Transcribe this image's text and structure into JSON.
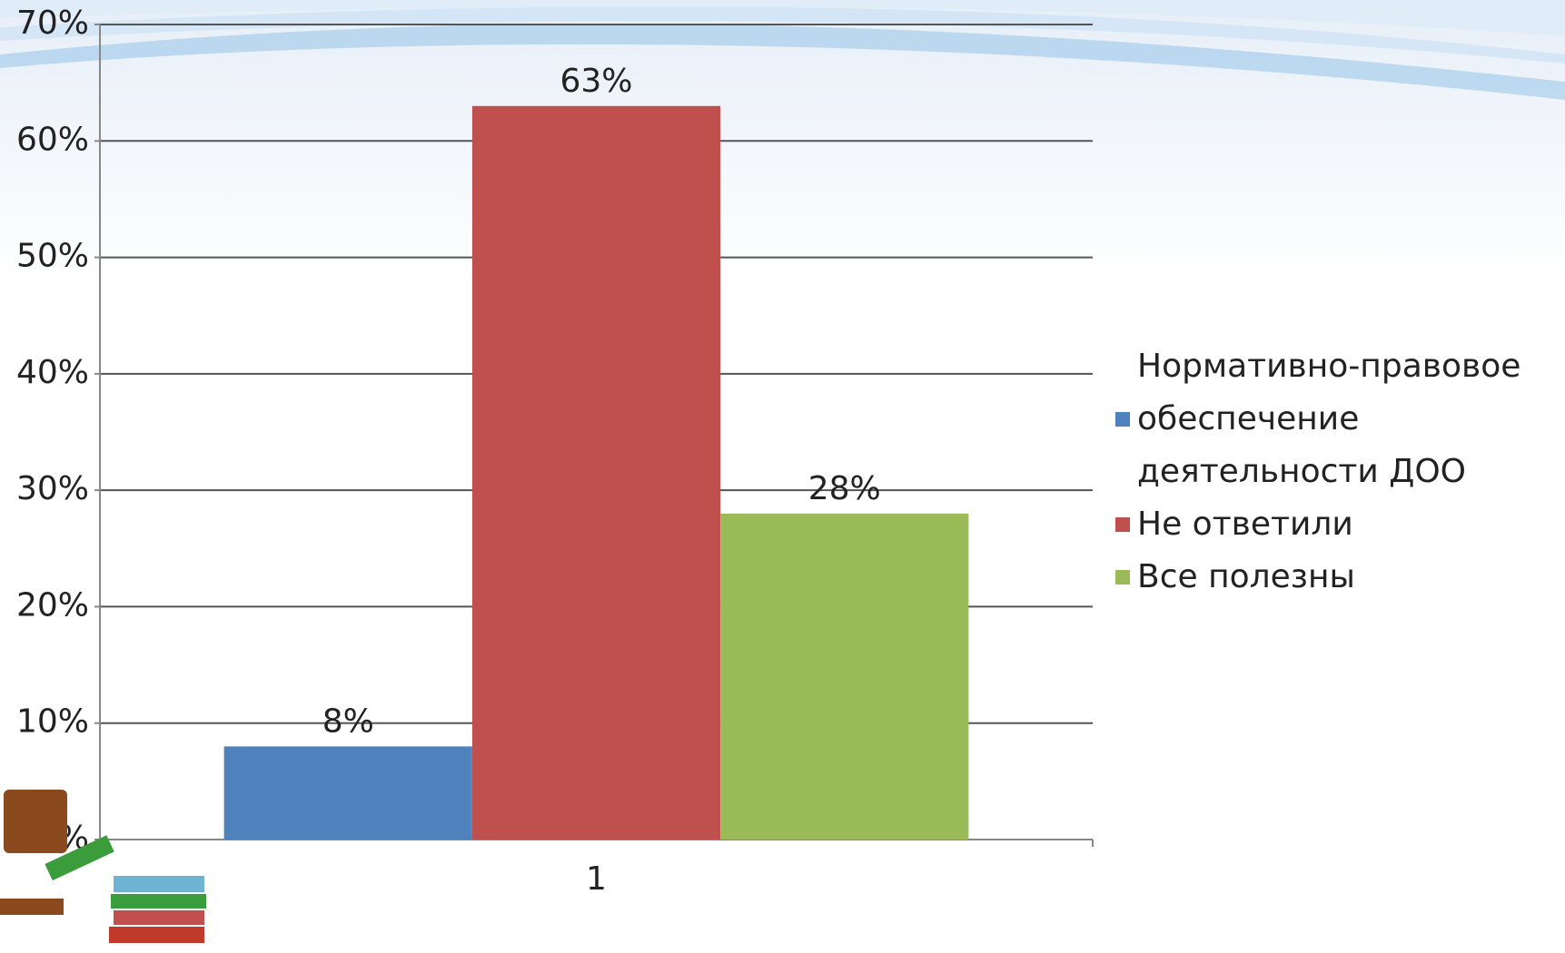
{
  "chart_data": {
    "type": "bar",
    "categories": [
      "1"
    ],
    "series": [
      {
        "name": "Нормативно-правовое обеспечение деятельности ДОО",
        "color": "#4f81bd",
        "values": [
          8
        ],
        "value_labels": [
          "8%"
        ]
      },
      {
        "name": "Не ответили",
        "color": "#c0504d",
        "values": [
          63
        ],
        "value_labels": [
          "63%"
        ]
      },
      {
        "name": "Все полезны",
        "color": "#9bbb59",
        "values": [
          28
        ],
        "value_labels": [
          "28%"
        ]
      }
    ],
    "ylim": [
      0,
      70
    ],
    "yticks": [
      {
        "value": 0,
        "label": "0%"
      },
      {
        "value": 10,
        "label": "10%"
      },
      {
        "value": 20,
        "label": "20%"
      },
      {
        "value": 30,
        "label": "30%"
      },
      {
        "value": 40,
        "label": "40%"
      },
      {
        "value": 50,
        "label": "50%"
      },
      {
        "value": 60,
        "label": "60%"
      },
      {
        "value": 70,
        "label": "70%"
      }
    ],
    "grid": true,
    "legend": "right"
  }
}
